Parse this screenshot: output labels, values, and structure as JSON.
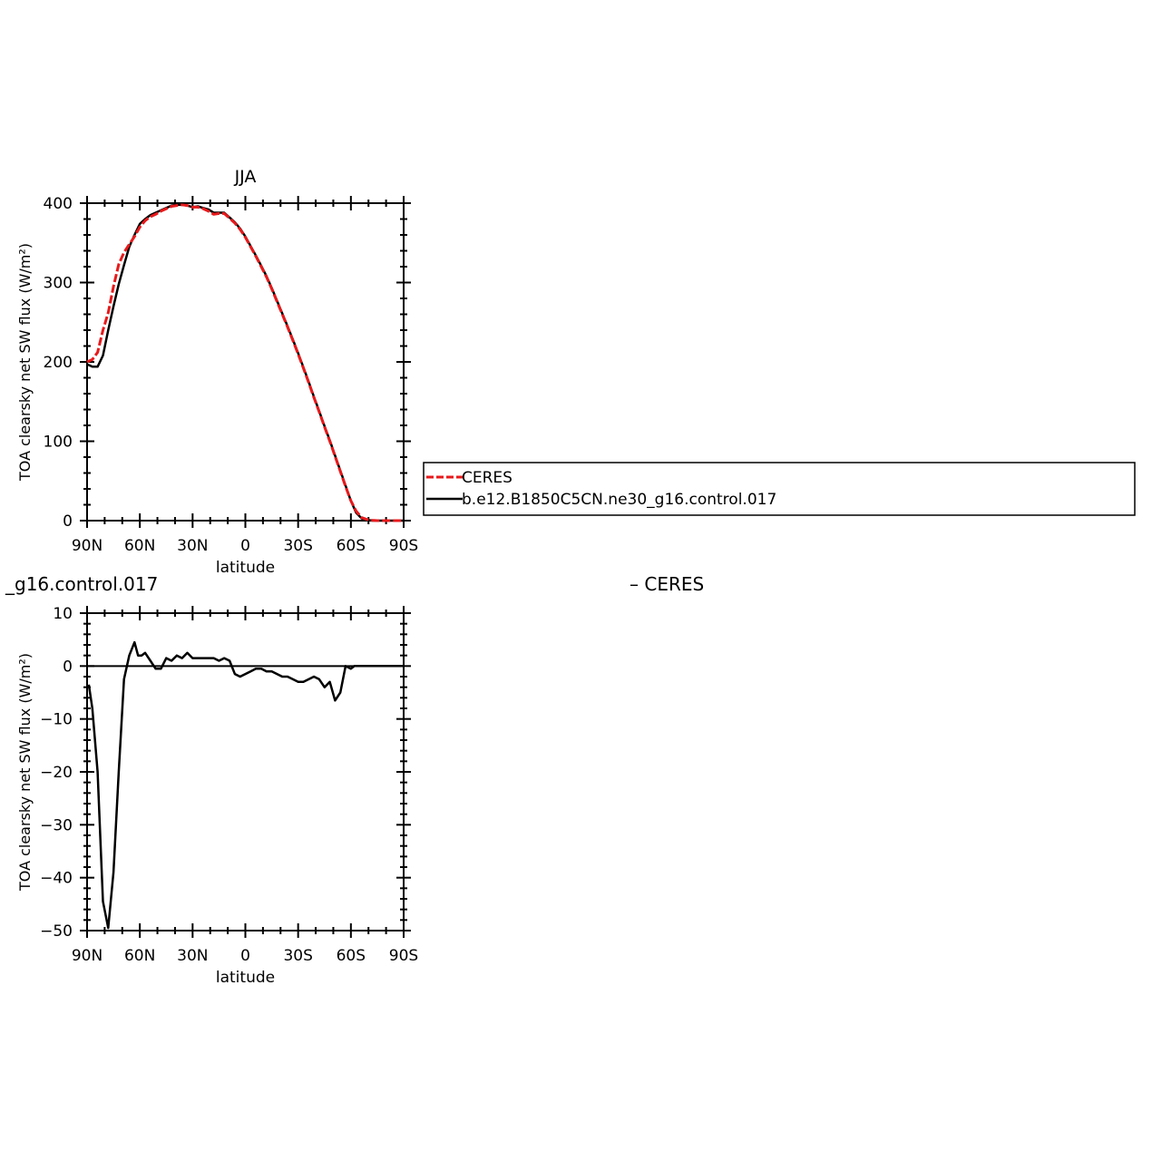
{
  "chart_data": [
    {
      "type": "line",
      "title": "JJA",
      "xlabel": "latitude",
      "ylabel": "TOA clearsky net SW flux (W/m²)",
      "xlim": [
        90,
        -90
      ],
      "ylim": [
        0,
        400
      ],
      "xticks": [
        90,
        60,
        30,
        0,
        -30,
        -60,
        -90
      ],
      "xtick_labels": [
        "90N",
        "60N",
        "30N",
        "0",
        "30S",
        "60S",
        "90S"
      ],
      "yticks": [
        0,
        100,
        200,
        300,
        400
      ],
      "ytick_labels": [
        "0",
        "100",
        "200",
        "300",
        "400"
      ],
      "legend_position": "right",
      "series": [
        {
          "name": "CERES",
          "color": "#e8191b",
          "style": "dashed",
          "x": [
            90,
            87,
            84,
            81,
            78,
            75,
            72,
            69,
            66,
            63,
            60,
            57,
            54,
            51,
            48,
            45,
            42,
            39,
            36,
            33,
            30,
            27,
            24,
            21,
            18,
            15,
            12,
            9,
            6,
            3,
            0,
            -3,
            -6,
            -9,
            -12,
            -15,
            -18,
            -21,
            -24,
            -27,
            -30,
            -33,
            -36,
            -39,
            -42,
            -45,
            -48,
            -51,
            -54,
            -57,
            -60,
            -63,
            -66,
            -69,
            -72,
            -75,
            -78,
            -81,
            -84,
            -87,
            -90
          ],
          "y": [
            200,
            203,
            212,
            240,
            262,
            295,
            323,
            338,
            348,
            358,
            370,
            378,
            383,
            386,
            390,
            393,
            396,
            397,
            398,
            397,
            395,
            395,
            393,
            390,
            386,
            387,
            387,
            381,
            375,
            367,
            357,
            345,
            333,
            320,
            307,
            292,
            276,
            260,
            244,
            227,
            210,
            192,
            174,
            155,
            137,
            118,
            100,
            81,
            62,
            43,
            25,
            12,
            4,
            1.5,
            0.5,
            0,
            0,
            0,
            0,
            0,
            0
          ]
        },
        {
          "name": "b.e12.B1850C5CN.ne30_g16.control.017",
          "color": "#000000",
          "style": "solid",
          "x": [
            90,
            87,
            84,
            81,
            78,
            75,
            72,
            69,
            66,
            63,
            60,
            57,
            54,
            51,
            48,
            45,
            42,
            39,
            36,
            33,
            30,
            27,
            24,
            21,
            18,
            15,
            12,
            9,
            6,
            3,
            0,
            -3,
            -6,
            -9,
            -12,
            -15,
            -18,
            -21,
            -24,
            -27,
            -30,
            -33,
            -36,
            -39,
            -42,
            -45,
            -48,
            -51,
            -54,
            -57,
            -60,
            -63,
            -66,
            -69,
            -72,
            -75,
            -78,
            -81,
            -84,
            -87,
            -90
          ],
          "y": [
            197,
            194,
            194,
            208,
            240,
            270,
            298,
            322,
            345,
            360,
            374,
            380,
            385,
            388,
            391,
            394,
            397,
            398,
            398,
            397,
            395,
            396,
            394,
            392,
            388,
            388,
            388,
            382,
            376,
            368,
            358,
            346,
            334,
            321,
            308,
            293,
            277,
            261,
            245,
            228,
            211,
            193,
            175,
            156,
            138,
            119,
            101,
            82,
            63,
            44,
            25,
            10,
            3,
            1,
            0,
            0,
            0,
            0,
            0,
            0,
            0
          ]
        }
      ]
    },
    {
      "type": "line",
      "title": "_g16.control.017",
      "title_right": "– CERES",
      "xlabel": "latitude",
      "ylabel": "TOA clearsky net SW flux (W/m²)",
      "xlim": [
        90,
        -90
      ],
      "ylim": [
        -50,
        10
      ],
      "xticks": [
        90,
        60,
        30,
        0,
        -30,
        -60,
        -90
      ],
      "xtick_labels": [
        "90N",
        "60N",
        "30N",
        "0",
        "30S",
        "60S",
        "90S"
      ],
      "yticks": [
        -50,
        -40,
        -30,
        -20,
        -10,
        0,
        10
      ],
      "ytick_labels": [
        "−50",
        "−40",
        "−30",
        "−20",
        "−10",
        "0",
        "10"
      ],
      "series": [
        {
          "color": "#000000",
          "style": "solid",
          "x": [
            89,
            87,
            84,
            81,
            78,
            75,
            72,
            69,
            66,
            63,
            61,
            59,
            57,
            54,
            51,
            48,
            45,
            42,
            39,
            36,
            33,
            30,
            27,
            24,
            21,
            18,
            15,
            12,
            9,
            6,
            3,
            0,
            -3,
            -6,
            -9,
            -12,
            -15,
            -18,
            -21,
            -24,
            -27,
            -30,
            -33,
            -36,
            -39,
            -42,
            -45,
            -48,
            -51,
            -54,
            -57,
            -60,
            -62,
            -64,
            -66,
            -68,
            -70,
            -72,
            -75,
            -78,
            -81,
            -84,
            -87,
            -90
          ],
          "y": [
            -3.5,
            -8,
            -20,
            -44.5,
            -49.5,
            -39,
            -20,
            -2.5,
            2,
            4.5,
            2,
            2,
            2.5,
            1,
            -0.5,
            -0.5,
            1.5,
            1,
            2,
            1.5,
            2.5,
            1.5,
            1.5,
            1.5,
            1.5,
            1.5,
            1,
            1.5,
            1,
            -1.5,
            -2,
            -1.5,
            -1,
            -0.5,
            -0.5,
            -1,
            -1,
            -1.5,
            -2,
            -2,
            -2.5,
            -3,
            -3,
            -2.5,
            -2,
            -2.5,
            -4,
            -3,
            -6.5,
            -5,
            0,
            -0.5,
            0,
            0,
            0,
            0,
            0,
            0,
            0,
            0,
            0,
            0,
            0,
            0
          ]
        }
      ]
    }
  ]
}
